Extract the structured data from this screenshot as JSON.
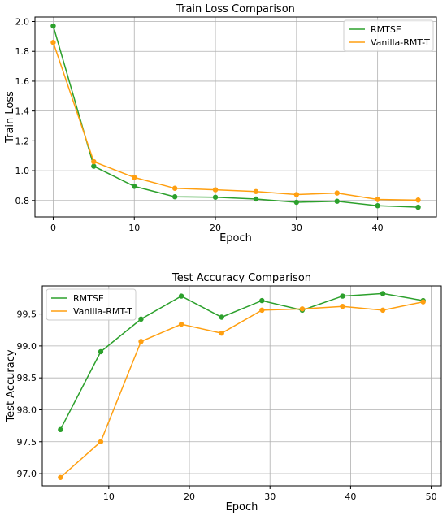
{
  "colors": {
    "rmtse": "#2ca02c",
    "vanilla": "#ff9f10"
  },
  "chart_data": [
    {
      "type": "line",
      "title": "Train Loss Comparison",
      "xlabel": "Epoch",
      "ylabel": "Train Loss",
      "xlim": [
        -2.25,
        47.25
      ],
      "ylim": [
        0.69,
        2.03
      ],
      "xticks": [
        0,
        10,
        20,
        30,
        40
      ],
      "yticks": [
        0.8,
        1.0,
        1.2,
        1.4,
        1.6,
        1.8,
        2.0
      ],
      "ytick_labels": [
        "0.8",
        "1.0",
        "1.2",
        "1.4",
        "1.6",
        "1.8",
        "2.0"
      ],
      "grid": true,
      "legend_position": "top-right",
      "series": [
        {
          "name": "RMTSE",
          "color_key": "rmtse",
          "x": [
            0,
            5,
            10,
            15,
            20,
            25,
            30,
            35,
            40,
            45
          ],
          "y": [
            1.97,
            1.03,
            0.895,
            0.825,
            0.822,
            0.81,
            0.788,
            0.795,
            0.765,
            0.755
          ]
        },
        {
          "name": "Vanilla-RMT-T",
          "color_key": "vanilla",
          "x": [
            0,
            5,
            10,
            15,
            20,
            25,
            30,
            35,
            40,
            45
          ],
          "y": [
            1.86,
            1.06,
            0.955,
            0.882,
            0.872,
            0.86,
            0.84,
            0.85,
            0.807,
            0.803
          ]
        }
      ]
    },
    {
      "type": "line",
      "title": "Test Accuracy Comparison",
      "xlabel": "Epoch",
      "ylabel": "Test Accuracy",
      "xlim": [
        1.75,
        51.25
      ],
      "ylim": [
        96.81,
        99.94
      ],
      "xticks": [
        10,
        20,
        30,
        40,
        50
      ],
      "yticks": [
        97.0,
        97.5,
        98.0,
        98.5,
        99.0,
        99.5
      ],
      "ytick_labels": [
        "97.0",
        "97.5",
        "98.0",
        "98.5",
        "99.0",
        "99.5"
      ],
      "grid": true,
      "legend_position": "top-left",
      "series": [
        {
          "name": "RMTSE",
          "color_key": "rmtse",
          "x": [
            4,
            9,
            14,
            19,
            24,
            29,
            34,
            39,
            44,
            49
          ],
          "y": [
            97.69,
            98.91,
            99.42,
            99.78,
            99.45,
            99.71,
            99.56,
            99.78,
            99.82,
            99.71
          ]
        },
        {
          "name": "Vanilla-RMT-T",
          "color_key": "vanilla",
          "x": [
            4,
            9,
            14,
            19,
            24,
            29,
            34,
            39,
            44,
            49
          ],
          "y": [
            96.94,
            97.5,
            99.07,
            99.34,
            99.2,
            99.56,
            99.58,
            99.62,
            99.56,
            99.69
          ]
        }
      ]
    }
  ]
}
